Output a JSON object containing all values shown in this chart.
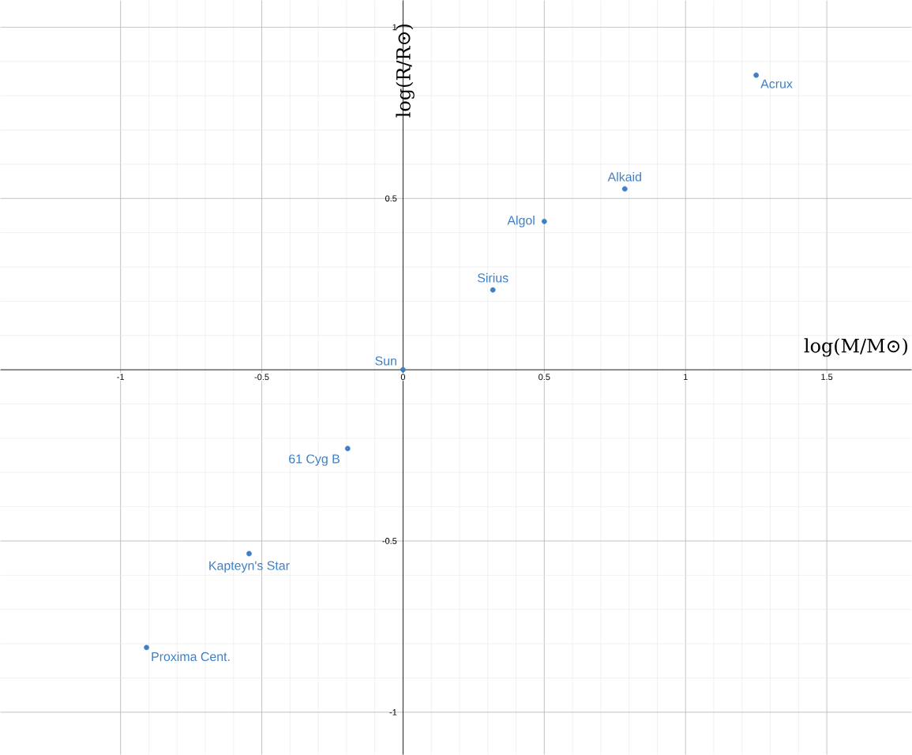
{
  "chart_data": {
    "type": "scatter",
    "xlabel": "log(M/M⊙)",
    "ylabel": "log(R/R⊙)",
    "x": [
      1.25,
      0.785,
      0.5,
      0.318,
      0,
      -0.196,
      -0.545,
      -0.908
    ],
    "values": [
      0.86,
      0.528,
      0.433,
      0.233,
      0,
      -0.23,
      -0.537,
      -0.811
    ],
    "color": "#3f7fc5",
    "grid": true,
    "xlim": [
      -1.425,
      1.8
    ],
    "ylim": [
      -1.124,
      1.078
    ],
    "xticks": [
      -1,
      -0.5,
      0,
      0.5,
      1,
      1.5
    ],
    "yticks": [
      -1,
      -0.5,
      {
        "value": 0,
        "label": null
      },
      0.5,
      1
    ],
    "annotations": [
      {
        "text": "Acrux",
        "x": 1.25,
        "y": 0.86
      },
      {
        "text": "Alkaid",
        "x": 0.785,
        "y": 0.528
      },
      {
        "text": "Algol",
        "x": 0.5,
        "y": 0.433
      },
      {
        "text": "Sirius",
        "x": 0.318,
        "y": 0.233
      },
      {
        "text": "Sun",
        "x": 0,
        "y": 0
      },
      {
        "text": "61 Cyg B",
        "x": -0.196,
        "y": -0.23
      },
      {
        "text": "Kapteyn's Star",
        "x": -0.545,
        "y": -0.537
      },
      {
        "text": "Proxima Cent.",
        "x": -0.908,
        "y": -0.811
      }
    ]
  }
}
